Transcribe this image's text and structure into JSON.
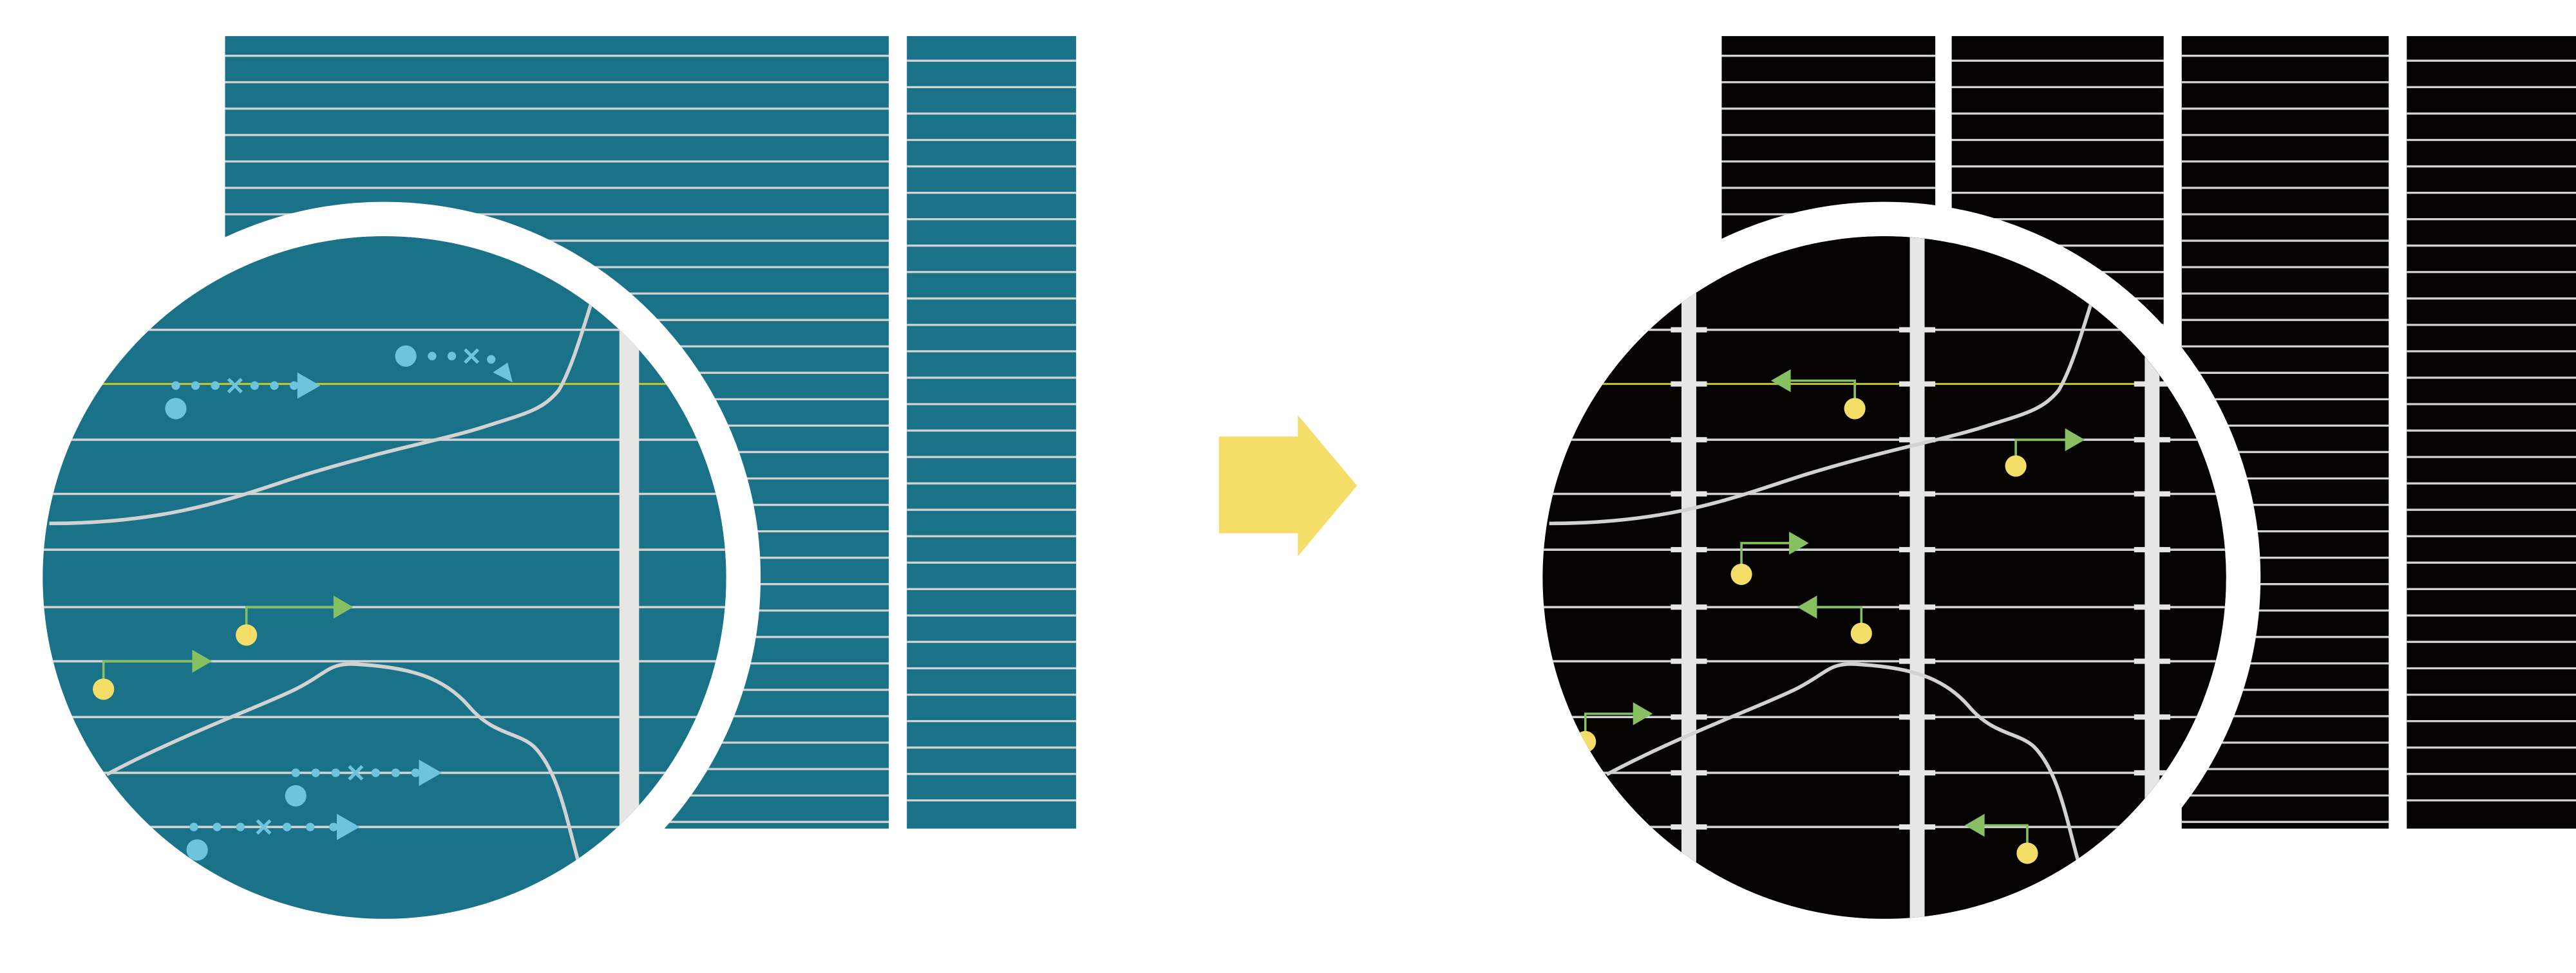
{
  "colors": {
    "background": "#ffffff",
    "before_panel": "#1a7289",
    "after_panel": "#050202",
    "grid_line": "#d2d2d2",
    "column_bar": "#e6e6e4",
    "highlight_line": "#c8c820",
    "dotted_arrow": "#6ec4dc",
    "green_arrow": "#86c060",
    "yellow_dot": "#f4de68",
    "transition_arrow": "#f4de68",
    "ring": "#ffffff"
  },
  "icons": {
    "transition": "right-arrow-icon",
    "left_markers": [
      "dotted-arrow-icon",
      "green-arrow-icon"
    ],
    "right_markers": [
      "green-arrow-icon"
    ]
  }
}
